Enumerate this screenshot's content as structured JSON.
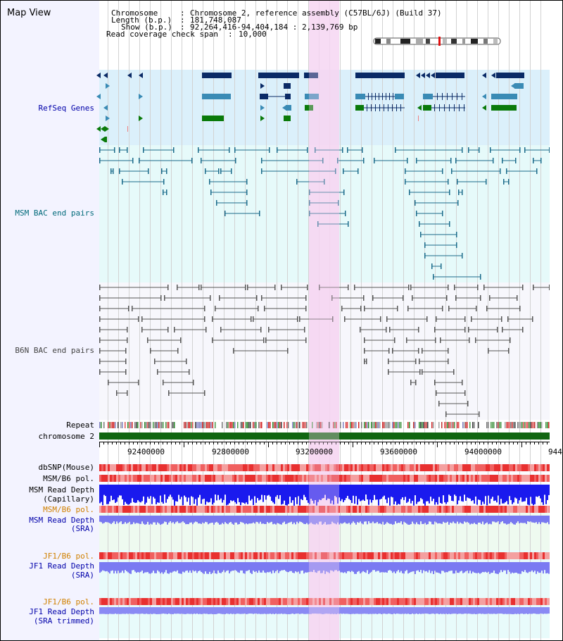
{
  "window_title": "Map View",
  "info": {
    "chromosome_key": "Chromosome",
    "chromosome_val": "Chromosome 2, reference assembly (C57BL/6J) (Build 37)",
    "length_key": "Length (b.p.)",
    "length_val": "181,748,087",
    "show_key": "Show (b.p.)",
    "show_val": "92,264,416-94,404,184 : 2,139,769 bp",
    "coverage_key": "Read coverage check span",
    "coverage_val": "10,000"
  },
  "tracks": {
    "refseq": "RefSeq Genes",
    "msm_bac": "MSM BAC end pairs",
    "b6n_bac": "B6N BAC end pairs",
    "repeat": "Repeat",
    "chromosome": "chromosome 2",
    "dbsnp": "dbSNP(Mouse)",
    "msm_b6_pol": "MSM/B6 pol.",
    "msm_read_depth_cap_1": "MSM Read Depth",
    "msm_read_depth_cap_2": "(Capillary)",
    "msm_b6_pol_2": "MSM/B6 pol.",
    "msm_read_depth_sra_1": "MSM Read Depth",
    "msm_read_depth_sra_2": "(SRA)",
    "jf1_b6_pol": "JF1/B6 pol.",
    "jf1_read_depth_1": "JF1 Read Depth",
    "jf1_read_depth_2": "(SRA)",
    "jf1_b6_pol_2": "JF1/B6 pol.",
    "jf1_read_depth_trim_1": "JF1 Read Depth",
    "jf1_read_depth_trim_2": "(SRA trimmed)"
  },
  "axis": {
    "ticks": [
      "92400000",
      "92800000",
      "93200000",
      "93600000",
      "94000000",
      "944"
    ]
  },
  "colors": {
    "refseq_bg": "#dbf0fb",
    "msm_bg": "#e6fafa",
    "b6n_bg": "#f7f7fc",
    "highlight": "#f6d6f2",
    "refseq_dark": "#0a2a66",
    "refseq_mid": "#3a8bb5",
    "refseq_green": "#0a7a0a",
    "msm_pair": "#1a6a8a",
    "b6n_pair": "#555555",
    "chromosome_bar": "#116611",
    "label_blue": "#0000aa",
    "label_teal": "#006a7a",
    "label_orange": "#d08000"
  }
}
